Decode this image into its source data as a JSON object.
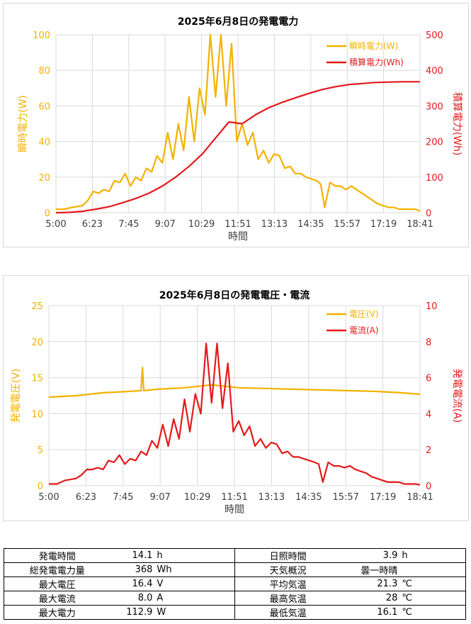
{
  "colors": {
    "orange": "#F2B200",
    "red": "#E31A1C",
    "grid": "#d9d9d9",
    "axis": "#595959"
  },
  "chart_data": [
    {
      "type": "line",
      "title": "2025年6月8日の発電電力",
      "xlabel": "時間",
      "ylabel_left": "瞬時電力(W)",
      "ylabel_right": "積算電力(Wh)",
      "x_ticks": [
        "5:00",
        "6:23",
        "7:45",
        "9:07",
        "10:29",
        "11:51",
        "13:13",
        "14:35",
        "15:57",
        "17:19",
        "18:41"
      ],
      "x_range_hours": [
        5.0,
        18.6833
      ],
      "ylim_left": [
        0,
        100
      ],
      "ylim_right": [
        0,
        500
      ],
      "y_ticks_left": [
        "0",
        "20",
        "40",
        "60",
        "80",
        "100"
      ],
      "y_ticks_right": [
        "0",
        "100",
        "200",
        "300",
        "400",
        "500"
      ],
      "grid": "horizontal",
      "legend_position": "top-right",
      "series": [
        {
          "name": "瞬時電力(W)",
          "axis": "left",
          "color": "#F2B200",
          "x": [
            5.0,
            5.3,
            5.6,
            6.0,
            6.2,
            6.4,
            6.6,
            6.8,
            7.0,
            7.2,
            7.4,
            7.6,
            7.8,
            8.0,
            8.2,
            8.4,
            8.6,
            8.8,
            9.0,
            9.2,
            9.4,
            9.6,
            9.8,
            10.0,
            10.2,
            10.4,
            10.6,
            10.8,
            11.0,
            11.2,
            11.4,
            11.6,
            11.8,
            12.0,
            12.2,
            12.4,
            12.6,
            12.8,
            13.0,
            13.2,
            13.4,
            13.6,
            13.8,
            14.0,
            14.2,
            14.4,
            14.6,
            14.8,
            14.95,
            15.1,
            15.3,
            15.5,
            15.7,
            15.9,
            16.1,
            16.3,
            16.5,
            16.7,
            16.9,
            17.1,
            17.3,
            17.5,
            17.7,
            17.9,
            18.1,
            18.3,
            18.5,
            18.68
          ],
          "y": [
            2,
            2,
            3,
            4,
            7,
            12,
            11,
            13,
            12,
            18,
            17,
            22,
            15,
            20,
            18,
            25,
            23,
            32,
            28,
            45,
            30,
            50,
            35,
            65,
            40,
            70,
            55,
            100,
            65,
            100,
            60,
            95,
            40,
            50,
            38,
            45,
            30,
            35,
            28,
            33,
            32,
            25,
            26,
            22,
            22,
            20,
            19,
            18,
            16,
            3,
            17,
            15,
            15,
            13,
            15,
            13,
            11,
            9,
            7,
            5,
            4,
            3,
            3,
            2,
            2,
            2,
            2,
            1
          ]
        },
        {
          "name": "積算電力(Wh)",
          "axis": "right",
          "color": "#E31A1C",
          "x": [
            5.0,
            5.5,
            6.0,
            6.5,
            7.0,
            7.5,
            8.0,
            8.5,
            9.0,
            9.5,
            10.0,
            10.5,
            11.0,
            11.5,
            12.0,
            12.5,
            13.0,
            13.5,
            14.0,
            14.5,
            15.0,
            15.5,
            16.0,
            16.5,
            17.0,
            17.5,
            18.0,
            18.68
          ],
          "y": [
            0,
            1,
            4,
            10,
            17,
            28,
            40,
            55,
            75,
            100,
            130,
            165,
            210,
            255,
            250,
            275,
            295,
            310,
            323,
            335,
            346,
            354,
            360,
            363,
            366,
            367,
            368,
            368
          ]
        }
      ]
    },
    {
      "type": "line",
      "title": "2025年6月8日の発電電圧・電流",
      "xlabel": "時間",
      "ylabel_left": "発電電圧(V)",
      "ylabel_right": "発電電流(A)",
      "x_ticks": [
        "5:00",
        "6:23",
        "7:45",
        "9:07",
        "10:29",
        "11:51",
        "13:13",
        "14:35",
        "15:57",
        "17:19",
        "18:41"
      ],
      "x_range_hours": [
        5.0,
        18.6833
      ],
      "ylim_left": [
        0,
        25
      ],
      "ylim_right": [
        0,
        10
      ],
      "y_ticks_left": [
        "0",
        "5",
        "10",
        "15",
        "20",
        "25"
      ],
      "y_ticks_right": [
        "0",
        "2",
        "4",
        "6",
        "8",
        "10"
      ],
      "grid": "horizontal",
      "legend_position": "top-right",
      "series": [
        {
          "name": "電圧(V)",
          "axis": "left",
          "color": "#F2B200",
          "x": [
            5.0,
            6.0,
            7.0,
            8.0,
            8.4,
            8.45,
            8.5,
            9.0,
            10.0,
            10.5,
            11.0,
            11.5,
            12.0,
            13.0,
            14.0,
            15.0,
            16.0,
            17.0,
            18.0,
            18.68
          ],
          "y": [
            12.3,
            12.5,
            12.9,
            13.1,
            13.2,
            16.4,
            13.2,
            13.4,
            13.6,
            13.8,
            14.0,
            13.8,
            13.6,
            13.5,
            13.4,
            13.3,
            13.2,
            13.1,
            12.9,
            12.7
          ]
        },
        {
          "name": "電流(A)",
          "axis": "right",
          "color": "#E31A1C",
          "x": [
            5.0,
            5.3,
            5.6,
            6.0,
            6.2,
            6.4,
            6.6,
            6.8,
            7.0,
            7.2,
            7.4,
            7.6,
            7.8,
            8.0,
            8.2,
            8.4,
            8.6,
            8.8,
            9.0,
            9.2,
            9.4,
            9.6,
            9.8,
            10.0,
            10.2,
            10.4,
            10.6,
            10.8,
            11.0,
            11.2,
            11.4,
            11.6,
            11.8,
            12.0,
            12.2,
            12.4,
            12.6,
            12.8,
            13.0,
            13.2,
            13.4,
            13.6,
            13.8,
            14.0,
            14.2,
            14.4,
            14.6,
            14.8,
            14.95,
            15.1,
            15.3,
            15.5,
            15.7,
            15.9,
            16.1,
            16.3,
            16.5,
            16.7,
            16.9,
            17.1,
            17.3,
            17.5,
            17.7,
            17.9,
            18.1,
            18.3,
            18.5,
            18.68
          ],
          "y": [
            0.1,
            0.1,
            0.3,
            0.4,
            0.6,
            0.9,
            0.9,
            1.0,
            0.9,
            1.4,
            1.3,
            1.7,
            1.2,
            1.5,
            1.4,
            1.9,
            1.7,
            2.5,
            2.1,
            3.4,
            2.2,
            3.7,
            2.6,
            4.8,
            3.0,
            5.1,
            4.0,
            7.9,
            4.6,
            7.9,
            4.3,
            6.8,
            3.0,
            3.6,
            2.8,
            3.3,
            2.2,
            2.6,
            2.1,
            2.4,
            2.3,
            1.8,
            1.9,
            1.6,
            1.6,
            1.5,
            1.4,
            1.3,
            1.2,
            0.2,
            1.3,
            1.1,
            1.1,
            1.0,
            1.1,
            0.9,
            0.8,
            0.7,
            0.5,
            0.4,
            0.3,
            0.2,
            0.2,
            0.2,
            0.1,
            0.1,
            0.1,
            0.05
          ]
        }
      ]
    }
  ],
  "summary": {
    "rows": [
      {
        "l_label": "発電時間",
        "l_value": "14.1",
        "l_unit": "h",
        "r_label": "日照時間",
        "r_value": "3.9",
        "r_unit": "h"
      },
      {
        "l_label": "総発電電力量",
        "l_value": "368",
        "l_unit": "Wh",
        "r_label": "天気概況",
        "r_value": "曇一時晴",
        "r_unit": ""
      },
      {
        "l_label": "最大電圧",
        "l_value": "16.4",
        "l_unit": "V",
        "r_label": "平均気温",
        "r_value": "21.3",
        "r_unit": "℃"
      },
      {
        "l_label": "最大電流",
        "l_value": "8.0",
        "l_unit": "A",
        "r_label": "最高気温",
        "r_value": "28",
        "r_unit": "℃"
      },
      {
        "l_label": "最大電力",
        "l_value": "112.9",
        "l_unit": "W",
        "r_label": "最低気温",
        "r_value": "16.1",
        "r_unit": "℃"
      }
    ]
  }
}
